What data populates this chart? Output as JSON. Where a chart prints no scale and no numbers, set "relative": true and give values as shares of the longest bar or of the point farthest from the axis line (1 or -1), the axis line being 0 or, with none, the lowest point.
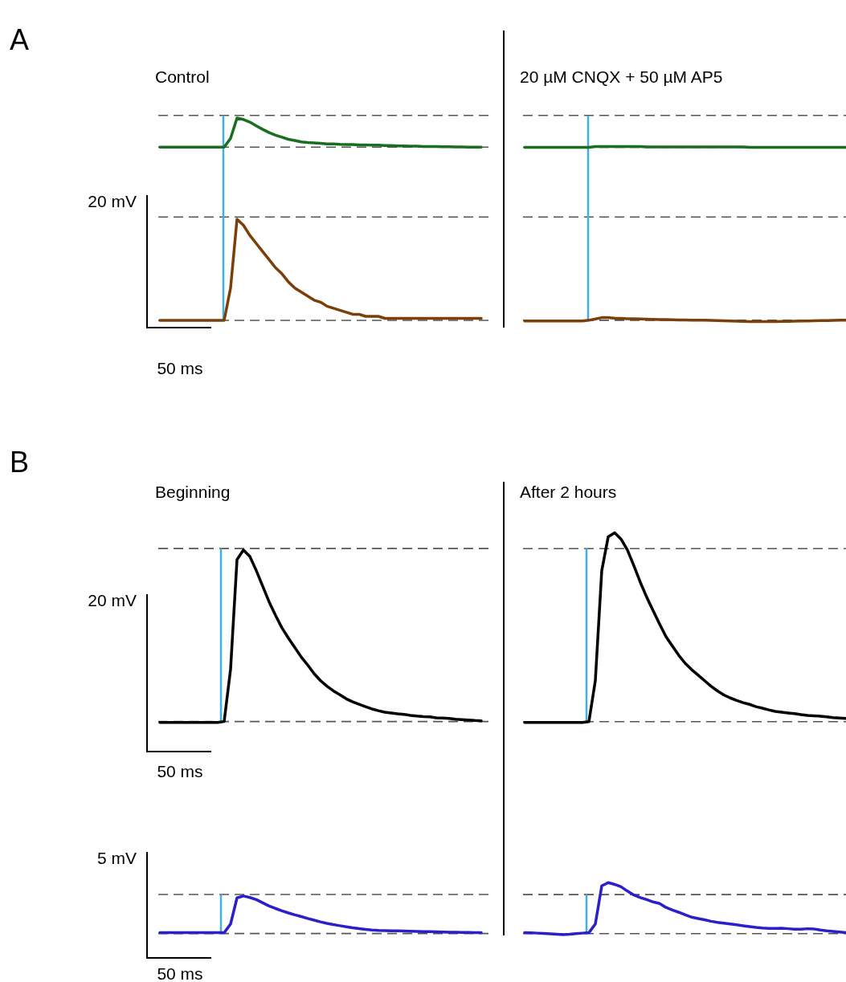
{
  "chart_data": [
    {
      "type": "line",
      "title": "Control",
      "annotations": [
        "A",
        "20 mV",
        "50 ms"
      ],
      "relative": true,
      "categories": [
        null,
        null,
        null,
        null,
        null,
        null,
        null,
        null,
        null,
        null,
        null,
        null,
        null,
        null,
        null,
        null,
        null,
        null,
        null,
        null,
        null,
        null,
        null,
        null,
        null,
        null,
        null,
        null,
        null,
        null,
        null,
        null,
        null,
        null,
        null,
        null,
        null,
        null,
        null,
        null,
        null,
        null,
        null,
        null,
        null,
        null,
        null,
        null,
        null,
        null,
        null
      ],
      "series": [
        {
          "color": "#1a6e1f",
          "values": [
            0.856,
            0.856,
            0.856,
            0.856,
            0.856,
            0.856,
            0.856,
            0.856,
            0.856,
            0.856,
            0.856,
            0.9,
            1,
            0.993,
            0.98,
            0.961,
            0.944,
            0.928,
            0.915,
            0.905,
            0.895,
            0.889,
            0.882,
            0.879,
            0.877,
            0.875,
            0.872,
            0.872,
            0.87,
            0.869,
            0.869,
            0.867,
            0.867,
            0.866,
            0.866,
            0.864,
            0.864,
            0.862,
            0.862,
            0.861,
            0.861,
            0.859,
            0.859,
            0.859,
            0.858,
            0.858,
            0.857,
            0.857,
            0.856,
            0.856,
            0.856
          ]
        },
        {
          "color": "#7b3f0a",
          "values": [
            0,
            0,
            0,
            0,
            0,
            0,
            0,
            0,
            0,
            0,
            0,
            0.16,
            0.5,
            0.47,
            0.42,
            0.38,
            0.34,
            0.3,
            0.26,
            0.23,
            0.19,
            0.16,
            0.14,
            0.12,
            0.1,
            0.09,
            0.07,
            0.06,
            0.05,
            0.04,
            0.03,
            0.03,
            0.02,
            0.02,
            0.02,
            0.01,
            0.01,
            0.01,
            0.01,
            0.01,
            0.01,
            0.01,
            0.01,
            0.01,
            0.01,
            0.01,
            0.01,
            0.01,
            0.01,
            0.01,
            0.01
          ]
        }
      ],
      "ref_lines": [
        {
          "axis": "y",
          "value": 1.013,
          "color": "#555555",
          "line_style": "dashed"
        },
        {
          "axis": "y",
          "value": 0.856,
          "color": "#555555",
          "line_style": "dashed"
        },
        {
          "axis": "y",
          "value": 0.511,
          "color": "#555555",
          "line_style": "dashed"
        },
        {
          "axis": "y",
          "value": 0,
          "color": "#555555",
          "line_style": "dashed"
        }
      ]
    },
    {
      "type": "line",
      "title": "20 µM CNQX + 50 µM AP5",
      "relative": true,
      "categories": [
        null,
        null,
        null,
        null,
        null,
        null,
        null,
        null,
        null,
        null,
        null,
        null,
        null,
        null,
        null,
        null,
        null,
        null,
        null,
        null,
        null,
        null,
        null,
        null,
        null,
        null,
        null,
        null,
        null,
        null,
        null,
        null,
        null,
        null,
        null,
        null,
        null,
        null,
        null,
        null,
        null,
        null,
        null,
        null,
        null,
        null,
        null,
        null,
        null,
        null,
        null
      ],
      "series": [
        {
          "color": "#1a6e1f",
          "values": [
            0.996,
            0.996,
            0.996,
            0.996,
            0.996,
            0.996,
            0.996,
            0.996,
            0.996,
            0.996,
            0.996,
            1,
            1,
            1,
            1,
            1,
            1,
            1,
            1,
            0.998,
            0.998,
            0.998,
            0.998,
            0.998,
            0.998,
            0.998,
            0.998,
            0.998,
            0.998,
            0.998,
            0.998,
            0.998,
            0.998,
            0.998,
            0.998,
            0.996,
            0.996,
            0.996,
            0.996,
            0.996,
            0.996,
            0.996,
            0.996,
            0.996,
            0.996,
            0.996,
            0.996,
            0.996,
            0.996,
            0.996,
            0.996
          ]
        },
        {
          "color": "#7b3f0a",
          "values": [
            0.004,
            0.004,
            0.004,
            0.004,
            0.004,
            0.004,
            0.004,
            0.004,
            0.004,
            0.004,
            0.008,
            0.015,
            0.023,
            0.023,
            0.02,
            0.019,
            0.017,
            0.016,
            0.015,
            0.014,
            0.013,
            0.012,
            0.012,
            0.011,
            0.01,
            0.01,
            0.009,
            0.009,
            0.008,
            0.007,
            0.006,
            0.005,
            0.004,
            0.003,
            0.002,
            0.001,
            0,
            0,
            0,
            0.001,
            0.002,
            0.002,
            0.003,
            0.004,
            0.004,
            0.005,
            0.006,
            0.006,
            0.007,
            0.008,
            0.008
          ]
        }
      ],
      "ref_lines": [
        {
          "axis": "y",
          "value": 1.178,
          "color": "#555555",
          "line_style": "dashed"
        },
        {
          "axis": "y",
          "value": 0.996,
          "color": "#555555",
          "line_style": "dashed"
        },
        {
          "axis": "y",
          "value": 0.598,
          "color": "#555555",
          "line_style": "dashed"
        },
        {
          "axis": "y",
          "value": 0.008,
          "color": "#555555",
          "line_style": "dashed"
        }
      ]
    },
    {
      "type": "line",
      "title": "Beginning",
      "annotations": [
        "B",
        "20 mV",
        "50 ms"
      ],
      "relative": true,
      "categories": [
        null,
        null,
        null,
        null,
        null,
        null,
        null,
        null,
        null,
        null,
        null,
        null,
        null,
        null,
        null,
        null,
        null,
        null,
        null,
        null,
        null,
        null,
        null,
        null,
        null,
        null,
        null,
        null,
        null,
        null,
        null,
        null,
        null,
        null,
        null,
        null,
        null,
        null,
        null,
        null,
        null,
        null,
        null,
        null,
        null,
        null,
        null,
        null,
        null,
        null,
        null
      ],
      "series": [
        {
          "color": "#000000",
          "values": [
            0,
            0,
            0,
            0,
            0,
            0,
            0,
            0,
            0,
            0,
            0.005,
            0.31,
            0.945,
            1,
            0.963,
            0.881,
            0.79,
            0.699,
            0.621,
            0.548,
            0.489,
            0.434,
            0.379,
            0.333,
            0.283,
            0.242,
            0.21,
            0.183,
            0.16,
            0.137,
            0.119,
            0.105,
            0.091,
            0.078,
            0.068,
            0.059,
            0.055,
            0.05,
            0.046,
            0.041,
            0.037,
            0.034,
            0.032,
            0.027,
            0.025,
            0.023,
            0.018,
            0.016,
            0.014,
            0.011,
            0.009
          ]
        }
      ],
      "ref_lines": [
        {
          "axis": "y",
          "value": 1.009,
          "color": "#555555",
          "line_style": "dashed"
        },
        {
          "axis": "y",
          "value": 0.005,
          "color": "#555555",
          "line_style": "dashed"
        }
      ]
    },
    {
      "type": "line",
      "title": "After 2 hours",
      "relative": true,
      "categories": [
        null,
        null,
        null,
        null,
        null,
        null,
        null,
        null,
        null,
        null,
        null,
        null,
        null,
        null,
        null,
        null,
        null,
        null,
        null,
        null,
        null,
        null,
        null,
        null,
        null,
        null,
        null,
        null,
        null,
        null,
        null,
        null,
        null,
        null,
        null,
        null,
        null,
        null,
        null,
        null,
        null,
        null,
        null,
        null,
        null,
        null,
        null,
        null,
        null,
        null,
        null
      ],
      "series": [
        {
          "color": "#000000",
          "values": [
            0,
            0,
            0,
            0,
            0,
            0,
            0,
            0,
            0,
            0,
            0.004,
            0.22,
            0.801,
            0.979,
            1,
            0.967,
            0.909,
            0.826,
            0.739,
            0.66,
            0.589,
            0.519,
            0.452,
            0.402,
            0.353,
            0.311,
            0.278,
            0.249,
            0.22,
            0.191,
            0.166,
            0.145,
            0.129,
            0.116,
            0.104,
            0.095,
            0.083,
            0.075,
            0.066,
            0.058,
            0.054,
            0.05,
            0.046,
            0.041,
            0.037,
            0.035,
            0.033,
            0.029,
            0.025,
            0.023,
            0.021
          ]
        }
      ],
      "ref_lines": [
        {
          "axis": "y",
          "value": 0.917,
          "color": "#555555",
          "line_style": "dashed"
        },
        {
          "axis": "y",
          "value": 0.004,
          "color": "#555555",
          "line_style": "dashed"
        }
      ]
    },
    {
      "type": "line",
      "annotations": [
        "5 mV",
        "50 ms"
      ],
      "relative": true,
      "categories": [
        null,
        null,
        null,
        null,
        null,
        null,
        null,
        null,
        null,
        null,
        null,
        null,
        null,
        null,
        null,
        null,
        null,
        null,
        null,
        null,
        null,
        null,
        null,
        null,
        null,
        null,
        null,
        null,
        null,
        null,
        null,
        null,
        null,
        null,
        null,
        null,
        null,
        null,
        null,
        null,
        null,
        null,
        null,
        null,
        null,
        null,
        null,
        null,
        null,
        null,
        null
      ],
      "series": [
        {
          "color": "#2a1fc8",
          "values": [
            0,
            0,
            0,
            0,
            0,
            0,
            0,
            0,
            0,
            0,
            0,
            0.237,
            0.948,
            1,
            0.96,
            0.902,
            0.815,
            0.728,
            0.659,
            0.595,
            0.538,
            0.486,
            0.439,
            0.387,
            0.341,
            0.295,
            0.254,
            0.22,
            0.191,
            0.162,
            0.133,
            0.11,
            0.092,
            0.075,
            0.064,
            0.058,
            0.052,
            0.052,
            0.046,
            0.04,
            0.035,
            0.029,
            0.029,
            0.023,
            0.017,
            0.012,
            0.012,
            0.006,
            0.006,
            0,
            0
          ]
        }
      ],
      "ref_lines": [
        {
          "axis": "y",
          "value": 1.04,
          "color": "#555555",
          "line_style": "dashed"
        },
        {
          "axis": "y",
          "value": -0.023,
          "color": "#555555",
          "line_style": "dashed"
        }
      ]
    },
    {
      "type": "line",
      "relative": true,
      "categories": [
        null,
        null,
        null,
        null,
        null,
        null,
        null,
        null,
        null,
        null,
        null,
        null,
        null,
        null,
        null,
        null,
        null,
        null,
        null,
        null,
        null,
        null,
        null,
        null,
        null,
        null,
        null,
        null,
        null,
        null,
        null,
        null,
        null,
        null,
        null,
        null,
        null,
        null,
        null,
        null,
        null,
        null,
        null,
        null,
        null,
        null,
        null,
        null,
        null,
        null,
        null
      ],
      "series": [
        {
          "color": "#2a1fc8",
          "values": [
            0.037,
            0.033,
            0.029,
            0.024,
            0.016,
            0.008,
            0,
            0.008,
            0.02,
            0.029,
            0.037,
            0.204,
            0.939,
            1,
            0.967,
            0.922,
            0.837,
            0.763,
            0.714,
            0.673,
            0.629,
            0.6,
            0.522,
            0.473,
            0.429,
            0.38,
            0.335,
            0.31,
            0.286,
            0.257,
            0.237,
            0.22,
            0.204,
            0.188,
            0.171,
            0.155,
            0.139,
            0.127,
            0.118,
            0.118,
            0.122,
            0.114,
            0.106,
            0.106,
            0.114,
            0.11,
            0.09,
            0.073,
            0.061,
            0.049,
            0.037
          ]
        }
      ],
      "ref_lines": [
        {
          "axis": "y",
          "value": 0.771,
          "color": "#555555",
          "line_style": "dashed"
        },
        {
          "axis": "y",
          "value": 0.02,
          "color": "#555555",
          "line_style": "dashed"
        }
      ]
    }
  ]
}
